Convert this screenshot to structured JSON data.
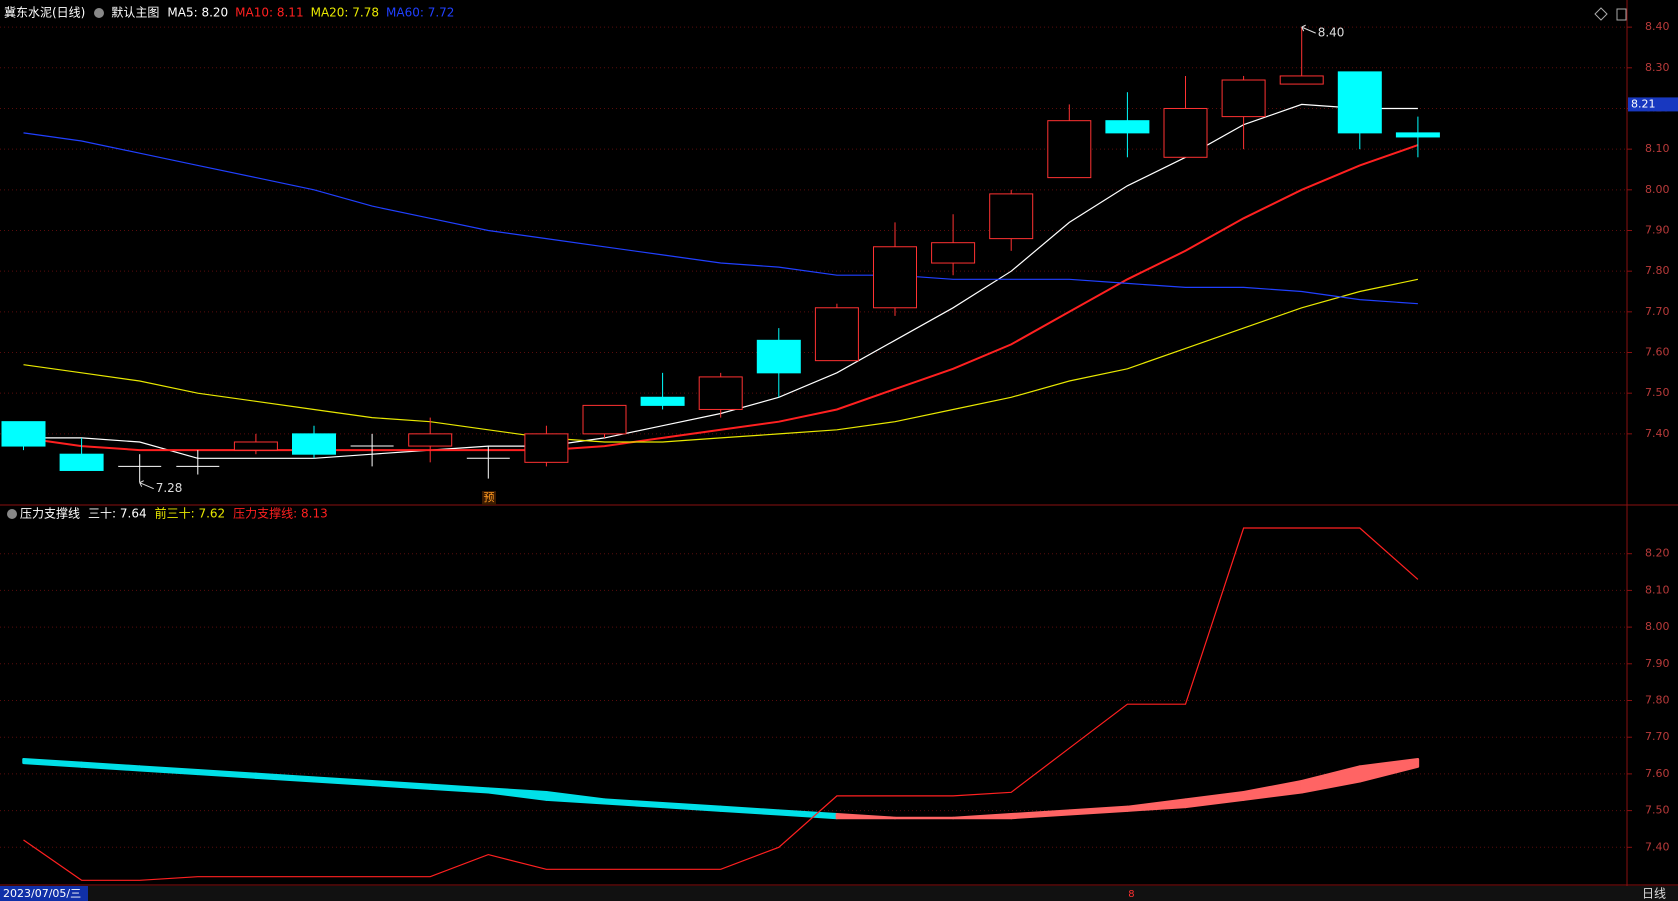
{
  "chart_data": {
    "type": "candlestick",
    "header": {
      "stock": "冀东水泥(日线)",
      "main": "默认主图"
    },
    "categories": [
      null,
      null,
      null,
      null,
      null,
      null,
      null,
      null,
      null,
      null,
      null,
      null,
      null,
      null,
      null,
      null,
      null,
      null,
      null,
      "8",
      null,
      null,
      null,
      null,
      null
    ],
    "candles": {
      "up_color": "#ff3232",
      "down_color": "#00ffff",
      "flat_color": "#ffffff",
      "open": [
        7.43,
        7.35,
        7.32,
        7.32,
        7.36,
        7.4,
        7.37,
        7.37,
        7.34,
        7.33,
        7.4,
        7.49,
        7.46,
        7.63,
        7.58,
        7.71,
        7.82,
        7.88,
        8.03,
        8.17,
        8.08,
        8.18,
        8.26,
        8.29,
        8.14
      ],
      "high": [
        7.43,
        7.39,
        7.35,
        7.36,
        7.4,
        7.42,
        7.4,
        7.44,
        7.37,
        7.42,
        7.47,
        7.55,
        7.55,
        7.66,
        7.72,
        7.92,
        7.94,
        8.0,
        8.21,
        8.24,
        8.28,
        8.28,
        8.4,
        8.29,
        8.18
      ],
      "low": [
        7.36,
        7.31,
        7.28,
        7.3,
        7.35,
        7.34,
        7.32,
        7.33,
        7.29,
        7.32,
        7.39,
        7.46,
        7.44,
        7.49,
        7.58,
        7.69,
        7.79,
        7.85,
        8.03,
        8.08,
        8.08,
        8.1,
        8.26,
        8.1,
        8.08
      ],
      "close": [
        7.37,
        7.31,
        7.32,
        7.32,
        7.38,
        7.35,
        7.37,
        7.4,
        7.34,
        7.4,
        7.47,
        7.47,
        7.54,
        7.55,
        7.71,
        7.86,
        7.87,
        7.99,
        8.17,
        8.14,
        8.2,
        8.27,
        8.28,
        8.14,
        8.13
      ]
    },
    "series": [
      {
        "legend": "MA5: 8.20",
        "color": "#ffffff",
        "values": [
          7.39,
          7.39,
          7.38,
          7.34,
          7.34,
          7.34,
          7.35,
          7.36,
          7.37,
          7.37,
          7.39,
          7.42,
          7.45,
          7.49,
          7.55,
          7.63,
          7.71,
          7.8,
          7.92,
          8.01,
          8.08,
          8.16,
          8.21,
          8.2,
          8.2
        ]
      },
      {
        "legend": "MA10: 8.11",
        "color": "#ff2020",
        "values": [
          7.39,
          7.37,
          7.36,
          7.36,
          7.36,
          7.36,
          7.36,
          7.36,
          7.36,
          7.36,
          7.37,
          7.39,
          7.41,
          7.43,
          7.46,
          7.51,
          7.56,
          7.62,
          7.7,
          7.78,
          7.85,
          7.93,
          8.0,
          8.06,
          8.11
        ]
      },
      {
        "legend": "MA20: 7.78",
        "color": "#e8e800",
        "values": [
          7.57,
          7.55,
          7.53,
          7.5,
          7.48,
          7.46,
          7.44,
          7.43,
          7.41,
          7.39,
          7.38,
          7.38,
          7.39,
          7.4,
          7.41,
          7.43,
          7.46,
          7.49,
          7.53,
          7.56,
          7.61,
          7.66,
          7.71,
          7.75,
          7.78
        ]
      },
      {
        "legend": "MA60: 7.72",
        "color": "#2040ff",
        "values": [
          8.14,
          8.12,
          8.09,
          8.06,
          8.03,
          8.0,
          7.96,
          7.93,
          7.9,
          7.88,
          7.86,
          7.84,
          7.82,
          7.81,
          7.79,
          7.79,
          7.78,
          7.78,
          7.78,
          7.77,
          7.76,
          7.76,
          7.75,
          7.73,
          7.72
        ]
      }
    ],
    "annotations": [
      {
        "text": "8.40",
        "value": 8.4
      },
      {
        "text": "7.28",
        "value": 7.28
      }
    ],
    "marker": "预",
    "last_price": {
      "value": 8.21,
      "label": "8.21"
    },
    "ylim": [
      7.23,
      8.42
    ],
    "yticks": [
      {
        "value": 7.4,
        "label": "7.40"
      },
      {
        "value": 7.5,
        "label": "7.50"
      },
      {
        "value": 7.6,
        "label": "7.60"
      },
      {
        "value": 7.7,
        "label": "7.70"
      },
      {
        "value": 7.8,
        "label": "7.80"
      },
      {
        "value": 7.9,
        "label": "7.90"
      },
      {
        "value": 8.0,
        "label": "8.00"
      },
      {
        "value": 8.1,
        "label": "8.10"
      },
      {
        "value": 8.2,
        "label": "8.20"
      },
      {
        "value": 8.3,
        "label": "8.30"
      },
      {
        "value": 8.4,
        "label": "8.40"
      }
    ],
    "indicator": {
      "title": "压力支撑线",
      "up_color": "#ff6464",
      "down_color": "#00e0e8",
      "band": [
        {
          "legend": "三十: 7.64",
          "color": "#ffffff",
          "values": [
            7.63,
            7.62,
            7.61,
            7.6,
            7.59,
            7.58,
            7.57,
            7.56,
            7.55,
            7.53,
            7.52,
            7.51,
            7.5,
            7.49,
            7.48,
            7.48,
            7.48,
            7.49,
            7.5,
            7.51,
            7.53,
            7.55,
            7.58,
            7.62,
            7.64
          ]
        },
        {
          "legend": "前三十: 7.62",
          "color": "#e8e800",
          "values": [
            7.64,
            7.63,
            7.62,
            7.61,
            7.6,
            7.59,
            7.58,
            7.57,
            7.56,
            7.55,
            7.53,
            7.52,
            7.51,
            7.5,
            7.49,
            7.48,
            7.48,
            7.48,
            7.49,
            7.5,
            7.51,
            7.53,
            7.55,
            7.58,
            7.62
          ]
        }
      ],
      "line": {
        "legend": "压力支撑线: 8.13",
        "color": "#ff2020",
        "values": [
          7.42,
          7.31,
          7.31,
          7.32,
          7.32,
          7.32,
          7.32,
          7.32,
          7.38,
          7.34,
          7.34,
          7.34,
          7.34,
          7.4,
          7.54,
          7.54,
          7.54,
          7.55,
          7.67,
          7.79,
          7.79,
          8.27,
          8.27,
          8.27,
          8.13
        ]
      },
      "ylim": [
        7.3,
        8.33
      ],
      "yticks": [
        {
          "value": 7.4,
          "label": "7.40"
        },
        {
          "value": 7.5,
          "label": "7.50"
        },
        {
          "value": 7.6,
          "label": "7.60"
        },
        {
          "value": 7.7,
          "label": "7.70"
        },
        {
          "value": 7.8,
          "label": "7.80"
        },
        {
          "value": 7.9,
          "label": "7.90"
        },
        {
          "value": 8.0,
          "label": "8.00"
        },
        {
          "value": 8.1,
          "label": "8.10"
        },
        {
          "value": 8.2,
          "label": "8.20"
        }
      ]
    },
    "footer": {
      "date": "2023/07/05/三",
      "period": "日线"
    }
  }
}
